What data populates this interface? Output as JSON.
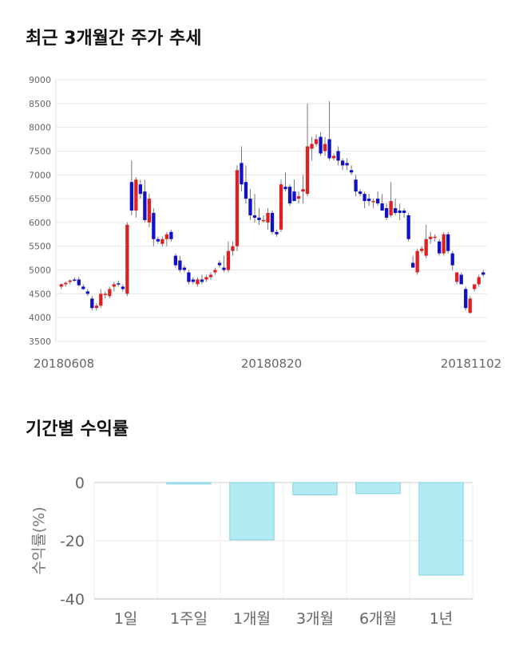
{
  "sections": {
    "price_title": "최근 3개월간 주가 추세",
    "returns_title": "기간별 수익률"
  },
  "chart_data": [
    {
      "type": "candlestick",
      "title": "최근 3개월간 주가 추세",
      "ylim": [
        3500,
        9000
      ],
      "y_ticks": [
        "3500",
        "4000",
        "4500",
        "5000",
        "5500",
        "6000",
        "6500",
        "7000",
        "7500",
        "8000",
        "8500",
        "9000"
      ],
      "x_tick_labels": [
        "20180608",
        "20180820",
        "20181102"
      ],
      "grid": true,
      "colors": {
        "up": "#e02020",
        "down": "#1010c8",
        "wick": "#777777"
      },
      "candles": [
        {
          "o": 4650,
          "h": 4720,
          "l": 4600,
          "c": 4700
        },
        {
          "o": 4700,
          "h": 4760,
          "l": 4650,
          "c": 4730
        },
        {
          "o": 4750,
          "h": 4800,
          "l": 4700,
          "c": 4780
        },
        {
          "o": 4800,
          "h": 4850,
          "l": 4750,
          "c": 4780
        },
        {
          "o": 4800,
          "h": 4850,
          "l": 4650,
          "c": 4680
        },
        {
          "o": 4650,
          "h": 4700,
          "l": 4580,
          "c": 4600
        },
        {
          "o": 4550,
          "h": 4600,
          "l": 4450,
          "c": 4500
        },
        {
          "o": 4400,
          "h": 4450,
          "l": 4150,
          "c": 4200
        },
        {
          "o": 4200,
          "h": 4300,
          "l": 4150,
          "c": 4250
        },
        {
          "o": 4250,
          "h": 4600,
          "l": 4200,
          "c": 4500
        },
        {
          "o": 4480,
          "h": 4550,
          "l": 4400,
          "c": 4500
        },
        {
          "o": 4450,
          "h": 4650,
          "l": 4400,
          "c": 4600
        },
        {
          "o": 4650,
          "h": 4750,
          "l": 4550,
          "c": 4700
        },
        {
          "o": 4720,
          "h": 4780,
          "l": 4650,
          "c": 4700
        },
        {
          "o": 4650,
          "h": 4700,
          "l": 4550,
          "c": 4600
        },
        {
          "o": 4500,
          "h": 6000,
          "l": 4450,
          "c": 5950
        },
        {
          "o": 6850,
          "h": 7300,
          "l": 6150,
          "c": 6250
        },
        {
          "o": 6250,
          "h": 6950,
          "l": 6100,
          "c": 6900
        },
        {
          "o": 6800,
          "h": 6900,
          "l": 6500,
          "c": 6600
        },
        {
          "o": 6650,
          "h": 6900,
          "l": 6000,
          "c": 6050
        },
        {
          "o": 6000,
          "h": 6600,
          "l": 5900,
          "c": 6500
        },
        {
          "o": 6200,
          "h": 6300,
          "l": 5500,
          "c": 5650
        },
        {
          "o": 5650,
          "h": 5700,
          "l": 5550,
          "c": 5600
        },
        {
          "o": 5550,
          "h": 5700,
          "l": 5500,
          "c": 5650
        },
        {
          "o": 5650,
          "h": 5800,
          "l": 5500,
          "c": 5750
        },
        {
          "o": 5800,
          "h": 5850,
          "l": 5600,
          "c": 5650
        },
        {
          "o": 5300,
          "h": 5350,
          "l": 5050,
          "c": 5100
        },
        {
          "o": 5200,
          "h": 5300,
          "l": 4950,
          "c": 5000
        },
        {
          "o": 5050,
          "h": 5100,
          "l": 4950,
          "c": 5000
        },
        {
          "o": 4950,
          "h": 5000,
          "l": 4700,
          "c": 4750
        },
        {
          "o": 4800,
          "h": 4850,
          "l": 4700,
          "c": 4750
        },
        {
          "o": 4700,
          "h": 4850,
          "l": 4650,
          "c": 4800
        },
        {
          "o": 4800,
          "h": 4900,
          "l": 4700,
          "c": 4750
        },
        {
          "o": 4800,
          "h": 4900,
          "l": 4750,
          "c": 4850
        },
        {
          "o": 4850,
          "h": 4950,
          "l": 4800,
          "c": 4900
        },
        {
          "o": 4950,
          "h": 5050,
          "l": 4900,
          "c": 5000
        },
        {
          "o": 5150,
          "h": 5200,
          "l": 5050,
          "c": 5100
        },
        {
          "o": 5050,
          "h": 5300,
          "l": 4950,
          "c": 5000
        },
        {
          "o": 5000,
          "h": 5600,
          "l": 4950,
          "c": 5400
        },
        {
          "o": 5400,
          "h": 5600,
          "l": 5300,
          "c": 5500
        },
        {
          "o": 5500,
          "h": 7200,
          "l": 5400,
          "c": 7100
        },
        {
          "o": 7250,
          "h": 7600,
          "l": 6650,
          "c": 6800
        },
        {
          "o": 6850,
          "h": 7200,
          "l": 6400,
          "c": 6500
        },
        {
          "o": 6500,
          "h": 6700,
          "l": 6050,
          "c": 6150
        },
        {
          "o": 6150,
          "h": 6600,
          "l": 6000,
          "c": 6100
        },
        {
          "o": 6100,
          "h": 6300,
          "l": 5950,
          "c": 6050
        },
        {
          "o": 6050,
          "h": 6150,
          "l": 6000,
          "c": 6050
        },
        {
          "o": 6000,
          "h": 6300,
          "l": 5850,
          "c": 6200
        },
        {
          "o": 6200,
          "h": 6250,
          "l": 5750,
          "c": 5800
        },
        {
          "o": 5800,
          "h": 5850,
          "l": 5700,
          "c": 5750
        },
        {
          "o": 5850,
          "h": 6900,
          "l": 5800,
          "c": 6800
        },
        {
          "o": 6750,
          "h": 7050,
          "l": 6650,
          "c": 6700
        },
        {
          "o": 6750,
          "h": 6800,
          "l": 6350,
          "c": 6400
        },
        {
          "o": 6650,
          "h": 6900,
          "l": 6450,
          "c": 6450
        },
        {
          "o": 6500,
          "h": 6650,
          "l": 6400,
          "c": 6550
        },
        {
          "o": 6650,
          "h": 7000,
          "l": 6400,
          "c": 6700
        },
        {
          "o": 6600,
          "h": 8500,
          "l": 6550,
          "c": 7600
        },
        {
          "o": 7550,
          "h": 7800,
          "l": 7300,
          "c": 7650
        },
        {
          "o": 7650,
          "h": 7850,
          "l": 7600,
          "c": 7750
        },
        {
          "o": 7800,
          "h": 7900,
          "l": 7400,
          "c": 7450
        },
        {
          "o": 7500,
          "h": 7800,
          "l": 7400,
          "c": 7650
        },
        {
          "o": 7750,
          "h": 8550,
          "l": 7300,
          "c": 7350
        },
        {
          "o": 7350,
          "h": 7450,
          "l": 7300,
          "c": 7400
        },
        {
          "o": 7500,
          "h": 7600,
          "l": 7200,
          "c": 7300
        },
        {
          "o": 7300,
          "h": 7350,
          "l": 7100,
          "c": 7200
        },
        {
          "o": 7250,
          "h": 7350,
          "l": 7100,
          "c": 7200
        },
        {
          "o": 7100,
          "h": 7200,
          "l": 7000,
          "c": 7050
        },
        {
          "o": 6900,
          "h": 7000,
          "l": 6550,
          "c": 6650
        },
        {
          "o": 6650,
          "h": 6700,
          "l": 6550,
          "c": 6600
        },
        {
          "o": 6600,
          "h": 6650,
          "l": 6300,
          "c": 6450
        },
        {
          "o": 6500,
          "h": 6600,
          "l": 6350,
          "c": 6450
        },
        {
          "o": 6450,
          "h": 6500,
          "l": 6300,
          "c": 6450
        },
        {
          "o": 6500,
          "h": 6650,
          "l": 6350,
          "c": 6400
        },
        {
          "o": 6400,
          "h": 6600,
          "l": 6250,
          "c": 6250
        },
        {
          "o": 6300,
          "h": 6400,
          "l": 6050,
          "c": 6100
        },
        {
          "o": 6150,
          "h": 6850,
          "l": 6100,
          "c": 6450
        },
        {
          "o": 6300,
          "h": 6500,
          "l": 6150,
          "c": 6200
        },
        {
          "o": 6250,
          "h": 6400,
          "l": 6050,
          "c": 6200
        },
        {
          "o": 6250,
          "h": 6300,
          "l": 6100,
          "c": 6200
        },
        {
          "o": 6150,
          "h": 6200,
          "l": 5600,
          "c": 5650
        },
        {
          "o": 5150,
          "h": 5300,
          "l": 5050,
          "c": 5050
        },
        {
          "o": 4950,
          "h": 5450,
          "l": 4900,
          "c": 5400
        },
        {
          "o": 5400,
          "h": 5500,
          "l": 5350,
          "c": 5450
        },
        {
          "o": 5300,
          "h": 5950,
          "l": 5250,
          "c": 5650
        },
        {
          "o": 5650,
          "h": 5800,
          "l": 5550,
          "c": 5700
        },
        {
          "o": 5700,
          "h": 5750,
          "l": 5600,
          "c": 5700
        },
        {
          "o": 5600,
          "h": 5650,
          "l": 5300,
          "c": 5350
        },
        {
          "o": 5350,
          "h": 5800,
          "l": 5300,
          "c": 5750
        },
        {
          "o": 5750,
          "h": 5800,
          "l": 5350,
          "c": 5400
        },
        {
          "o": 5350,
          "h": 5400,
          "l": 5000,
          "c": 5100
        },
        {
          "o": 4750,
          "h": 4950,
          "l": 4700,
          "c": 4950
        },
        {
          "o": 4900,
          "h": 4950,
          "l": 4700,
          "c": 4700
        },
        {
          "o": 4600,
          "h": 4650,
          "l": 4150,
          "c": 4200
        },
        {
          "o": 4100,
          "h": 4450,
          "l": 4080,
          "c": 4400
        },
        {
          "o": 4600,
          "h": 4700,
          "l": 4550,
          "c": 4700
        },
        {
          "o": 4700,
          "h": 4900,
          "l": 4650,
          "c": 4850
        },
        {
          "o": 4950,
          "h": 5000,
          "l": 4850,
          "c": 4900
        }
      ]
    },
    {
      "type": "bar",
      "title": "기간별 수익률",
      "ylabel": "수익률(%)",
      "ylim": [
        -40,
        0
      ],
      "y_ticks": [
        "0",
        "-20",
        "-40"
      ],
      "categories": [
        "1일",
        "1주일",
        "1개월",
        "3개월",
        "6개월",
        "1년"
      ],
      "values": [
        0,
        -0.5,
        -19.7,
        -4.2,
        -3.8,
        -31.8
      ],
      "grid": true,
      "colors": {
        "bar": "#b3ebf5",
        "bar_edge": "#7fd0e0"
      }
    }
  ]
}
